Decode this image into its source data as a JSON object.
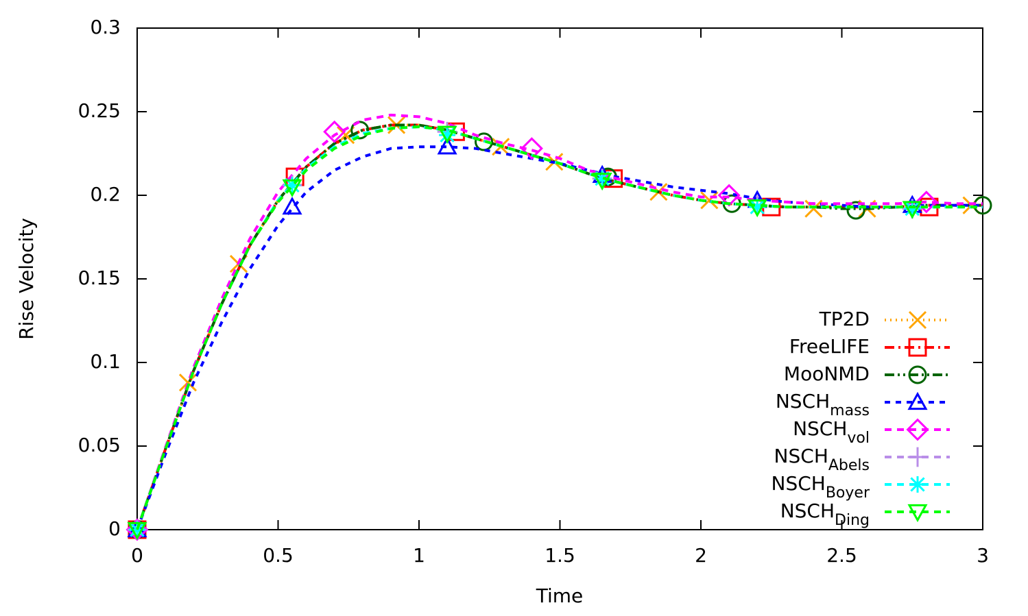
{
  "chart_data": {
    "type": "line",
    "x_label": "Time",
    "y_label": "Rise Velocity",
    "xlim": [
      0,
      3
    ],
    "ylim": [
      0,
      0.3
    ],
    "xticks": [
      0,
      0.5,
      1,
      1.5,
      2,
      2.5,
      3
    ],
    "yticks": [
      0,
      0.05,
      0.1,
      0.15,
      0.2,
      0.25,
      0.3
    ],
    "legend": "lower-right",
    "x": [
      0,
      0.1,
      0.2,
      0.3,
      0.4,
      0.5,
      0.6,
      0.7,
      0.8,
      0.9,
      1.0,
      1.1,
      1.2,
      1.3,
      1.4,
      1.5,
      1.6,
      1.7,
      1.8,
      1.9,
      2.0,
      2.1,
      2.2,
      2.3,
      2.4,
      2.5,
      2.6,
      2.7,
      2.8,
      2.9,
      3.0
    ],
    "series": [
      {
        "name": "TP2D",
        "color": "#ffa500",
        "dash": "2,6",
        "marker": "cross",
        "values": [
          0,
          0.048,
          0.095,
          0.135,
          0.17,
          0.197,
          0.217,
          0.231,
          0.239,
          0.242,
          0.242,
          0.239,
          0.234,
          0.229,
          0.224,
          0.219,
          0.213,
          0.208,
          0.204,
          0.2,
          0.197,
          0.195,
          0.194,
          0.193,
          0.193,
          0.193,
          0.193,
          0.193,
          0.194,
          0.194,
          0.194
        ],
        "marker_x": [
          0,
          0.18,
          0.36,
          0.74,
          0.92,
          1.29,
          1.48,
          1.85,
          2.03,
          2.4,
          2.59,
          2.96
        ],
        "marker_values": [
          0,
          0.088,
          0.159,
          0.236,
          0.242,
          0.229,
          0.22,
          0.202,
          0.197,
          0.192,
          0.192,
          0.194
        ]
      },
      {
        "name": "FreeLIFE",
        "color": "#ff0000",
        "dash": "14,6,3,6",
        "marker": "square",
        "values": [
          0,
          0.048,
          0.095,
          0.135,
          0.17,
          0.197,
          0.217,
          0.231,
          0.239,
          0.242,
          0.242,
          0.239,
          0.234,
          0.229,
          0.224,
          0.219,
          0.213,
          0.208,
          0.204,
          0.2,
          0.197,
          0.195,
          0.194,
          0.193,
          0.193,
          0.193,
          0.193,
          0.193,
          0.194,
          0.194,
          0.194
        ],
        "marker_x": [
          0,
          0.56,
          1.13,
          1.69,
          2.25,
          2.81
        ],
        "marker_values": [
          0,
          0.211,
          0.238,
          0.21,
          0.193,
          0.193
        ]
      },
      {
        "name": "MooNMD",
        "color": "#006400",
        "dash": "14,5,3,5,3,5",
        "marker": "circle",
        "values": [
          0,
          0.048,
          0.095,
          0.135,
          0.17,
          0.197,
          0.217,
          0.231,
          0.239,
          0.242,
          0.242,
          0.239,
          0.234,
          0.229,
          0.224,
          0.219,
          0.213,
          0.208,
          0.204,
          0.2,
          0.197,
          0.195,
          0.194,
          0.193,
          0.193,
          0.192,
          0.192,
          0.193,
          0.194,
          0.194,
          0.194
        ],
        "marker_x": [
          0,
          0.79,
          1.23,
          1.67,
          2.11,
          2.55,
          3.0
        ],
        "marker_values": [
          0,
          0.239,
          0.232,
          0.211,
          0.195,
          0.191,
          0.194
        ]
      },
      {
        "name": "NSCH",
        "subscript": "mass",
        "color": "#0000ff",
        "dash": "8,8",
        "marker": "triangle",
        "values": [
          0,
          0.045,
          0.088,
          0.124,
          0.156,
          0.182,
          0.202,
          0.215,
          0.223,
          0.228,
          0.229,
          0.229,
          0.228,
          0.225,
          0.222,
          0.219,
          0.215,
          0.211,
          0.208,
          0.205,
          0.203,
          0.201,
          0.198,
          0.196,
          0.195,
          0.194,
          0.193,
          0.193,
          0.194,
          0.194,
          0.194
        ],
        "marker_x": [
          0,
          0.55,
          1.1,
          1.65,
          2.2,
          2.75
        ],
        "marker_values": [
          0,
          0.193,
          0.229,
          0.212,
          0.197,
          0.194
        ]
      },
      {
        "name": "NSCH",
        "subscript": "vol",
        "color": "#ff00ff",
        "dash": "10,8",
        "marker": "diamond",
        "values": [
          0,
          0.049,
          0.097,
          0.138,
          0.174,
          0.202,
          0.222,
          0.236,
          0.245,
          0.248,
          0.247,
          0.243,
          0.236,
          0.231,
          0.227,
          0.222,
          0.215,
          0.21,
          0.206,
          0.202,
          0.199,
          0.199,
          0.197,
          0.196,
          0.195,
          0.195,
          0.195,
          0.195,
          0.196,
          0.195,
          0.195
        ],
        "marker_x": [
          0,
          0.7,
          1.4,
          2.1,
          2.8
        ],
        "marker_values": [
          0,
          0.238,
          0.228,
          0.2,
          0.196
        ]
      },
      {
        "name": "NSCH",
        "subscript": "Abels",
        "color": "#b98ee8",
        "dash": "10,8",
        "marker": "plus",
        "values": [
          0,
          0.048,
          0.095,
          0.135,
          0.17,
          0.197,
          0.216,
          0.229,
          0.237,
          0.24,
          0.241,
          0.239,
          0.234,
          0.229,
          0.224,
          0.219,
          0.213,
          0.208,
          0.204,
          0.2,
          0.197,
          0.195,
          0.194,
          0.193,
          0.193,
          0.193,
          0.193,
          0.193,
          0.193,
          0.193,
          0.193
        ],
        "marker_x": [
          0,
          0.55,
          1.1,
          1.65,
          2.2,
          2.75
        ],
        "marker_values": [
          0,
          0.206,
          0.238,
          0.21,
          0.194,
          0.192
        ]
      },
      {
        "name": "NSCH",
        "subscript": "Boyer",
        "color": "#00ffff",
        "dash": "10,8",
        "marker": "star",
        "values": [
          0,
          0.048,
          0.095,
          0.135,
          0.17,
          0.197,
          0.216,
          0.229,
          0.237,
          0.24,
          0.241,
          0.239,
          0.234,
          0.229,
          0.224,
          0.219,
          0.213,
          0.208,
          0.204,
          0.2,
          0.197,
          0.195,
          0.194,
          0.193,
          0.193,
          0.193,
          0.193,
          0.193,
          0.193,
          0.193,
          0.193
        ],
        "marker_x": [
          0,
          0.55,
          1.1,
          1.65,
          2.2,
          2.75
        ],
        "marker_values": [
          0,
          0.206,
          0.236,
          0.21,
          0.193,
          0.192
        ]
      },
      {
        "name": "NSCH",
        "subscript": "Ding",
        "color": "#00ff00",
        "dash": "10,8",
        "marker": "down-triangle",
        "values": [
          0,
          0.048,
          0.095,
          0.135,
          0.17,
          0.196,
          0.215,
          0.228,
          0.236,
          0.24,
          0.241,
          0.239,
          0.234,
          0.229,
          0.224,
          0.219,
          0.213,
          0.208,
          0.204,
          0.2,
          0.197,
          0.195,
          0.194,
          0.193,
          0.193,
          0.193,
          0.193,
          0.193,
          0.193,
          0.193,
          0.193
        ],
        "marker_x": [
          0,
          0.55,
          1.1,
          1.65,
          2.2,
          2.75
        ],
        "marker_values": [
          0,
          0.205,
          0.237,
          0.209,
          0.193,
          0.192
        ]
      }
    ]
  }
}
